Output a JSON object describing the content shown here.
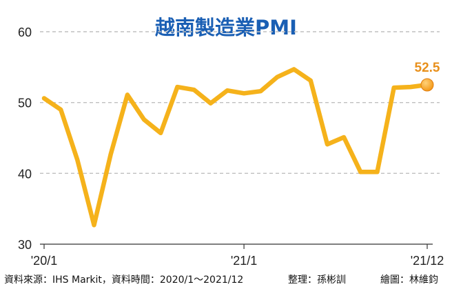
{
  "chart_data": {
    "type": "line",
    "title": "越南製造業PMI",
    "x": [
      "2020-01",
      "2020-02",
      "2020-03",
      "2020-04",
      "2020-05",
      "2020-06",
      "2020-07",
      "2020-08",
      "2020-09",
      "2020-10",
      "2020-11",
      "2020-12",
      "2021-01",
      "2021-02",
      "2021-03",
      "2021-04",
      "2021-05",
      "2021-06",
      "2021-07",
      "2021-08",
      "2021-09",
      "2021-10",
      "2021-11",
      "2021-12"
    ],
    "series": [
      {
        "values": [
          50.6,
          49.0,
          41.9,
          32.7,
          42.7,
          51.1,
          47.6,
          45.7,
          52.2,
          51.8,
          49.9,
          51.7,
          51.3,
          51.6,
          53.6,
          54.7,
          53.1,
          44.1,
          45.1,
          40.2,
          40.2,
          52.1,
          52.2,
          52.5
        ]
      }
    ],
    "xticks": [
      "'20/1",
      "'21/1",
      "'21/12"
    ],
    "yticks": [
      30,
      40,
      50,
      60
    ],
    "ylim": [
      30,
      60
    ],
    "grid": "horizontal dashed",
    "last_value_label": "52.5",
    "colors": {
      "line": "#f5b21b",
      "title": "#1a5fb4",
      "marker": "#f39a1a",
      "label": "#e8901c",
      "grid": "#bfbfbf"
    }
  },
  "footer": {
    "source": "資料來源：IHS Markit，資料時間：2020/1～2021/12",
    "editor": "整理：孫彬訓",
    "artist": "繪圖：林維鈞"
  }
}
